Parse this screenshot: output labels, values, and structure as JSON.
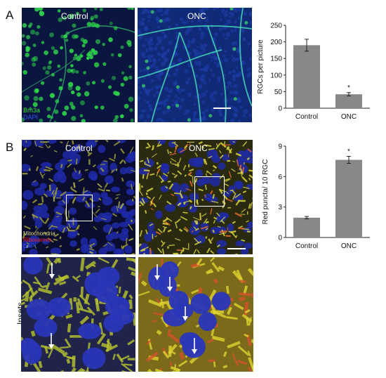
{
  "panel_a": {
    "letter": "A",
    "images": {
      "control_label": "Control",
      "onc_label": "ONC"
    },
    "stains": [
      "Brn3a",
      "DAPI"
    ],
    "stain_colors": [
      "#33dd33",
      "#3355ee"
    ]
  },
  "panel_b": {
    "letter": "B",
    "images": {
      "control_label": "Control",
      "onc_label": "ONC"
    },
    "stains": [
      "Mitochondria",
      "Ribosomes",
      "DAPI"
    ],
    "stain_colors": [
      "#dddd77",
      "#ee2222",
      "#3355ee"
    ],
    "insets_label": "Insets"
  },
  "chart_data": [
    {
      "type": "bar",
      "categories": [
        "Control",
        "ONC"
      ],
      "values": [
        190,
        42
      ],
      "errors": [
        18,
        5
      ],
      "significance": [
        "",
        "*"
      ],
      "ylabel": "RGCs per picture",
      "ylim": [
        0,
        250
      ],
      "yticks": [
        0,
        50,
        100,
        150,
        200,
        250
      ],
      "bar_color": "#888888"
    },
    {
      "type": "bar",
      "categories": [
        "Control",
        "ONC"
      ],
      "values": [
        1.95,
        7.65
      ],
      "errors": [
        0.12,
        0.35
      ],
      "significance": [
        "",
        "*"
      ],
      "ylabel": "Red puncta/ 10  RGC",
      "ylim": [
        0,
        9
      ],
      "yticks": [
        0,
        3,
        6,
        9
      ],
      "bar_color": "#888888"
    }
  ]
}
